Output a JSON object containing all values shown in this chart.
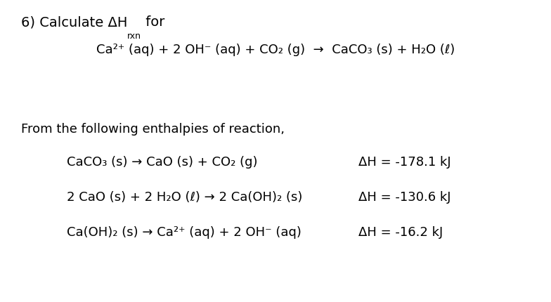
{
  "background_color": "#ffffff",
  "font_family": "DejaVu Sans",
  "title_prefix": "6) Calculate ΔH",
  "title_sub": "rxn",
  "title_suffix": " for",
  "main_reaction": "Ca²⁺ (aq) + 2 OH⁻ (aq) + CO₂ (g)  →  CaCO₃ (s) + H₂O (ℓ)",
  "from_text": "From the following enthalpies of reaction,",
  "reactions": [
    {
      "eq": "CaCO₃ (s) → CaO (s) + CO₂ (g)",
      "dh": "ΔH = -178.1 kJ"
    },
    {
      "eq": "2 CaO (s) + 2 H₂O (ℓ) → 2 Ca(OH)₂ (s)",
      "dh": "ΔH = -130.6 kJ"
    },
    {
      "eq": "Ca(OH)₂ (s) → Ca²⁺ (aq) + 2 OH⁻ (aq)",
      "dh": "ΔH = -16.2 kJ"
    }
  ],
  "font_size_title": 14,
  "font_size_sub": 9,
  "font_size_reaction": 13,
  "font_size_from": 13,
  "font_weight": "normal"
}
